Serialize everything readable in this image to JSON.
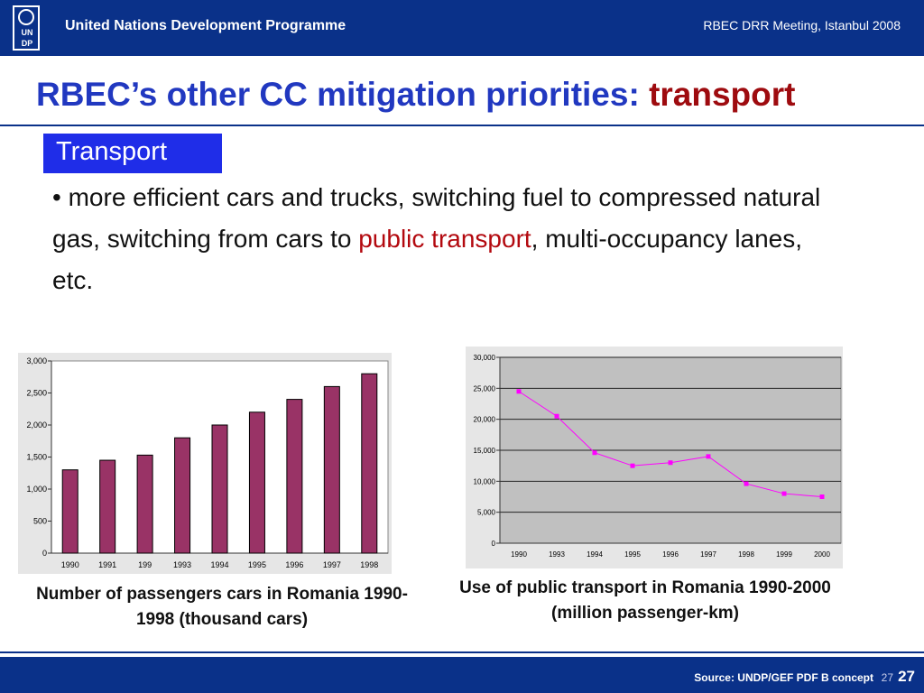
{
  "header": {
    "logo_letters": [
      "U",
      "N",
      "D",
      "P"
    ],
    "org_name": "United Nations Development Programme",
    "meeting": "RBEC DRR Meeting, Istanbul 2008"
  },
  "title": {
    "main": "RBEC’s other CC mitigation priorities: ",
    "accent": "transport"
  },
  "section_tag": "Transport",
  "bullet": {
    "symbol": "•",
    "part1": " more efficient cars and trucks, switching fuel to compressed natural gas, switching from cars to ",
    "highlight": "public transport",
    "part2": ", multi-occupancy lanes, etc."
  },
  "colors": {
    "brand_blue": "#0a3189",
    "title_blue": "#2138c0",
    "accent_red": "#9e0b0f",
    "bar_color": "#993366",
    "line_color": "#ff00ff"
  },
  "chart_data": [
    {
      "type": "bar",
      "categories": [
        "1990",
        "1991",
        "199",
        "1993",
        "1994",
        "1995",
        "1996",
        "1997",
        "1998"
      ],
      "values": [
        1300,
        1450,
        1530,
        1800,
        2000,
        2200,
        2400,
        2600,
        2800
      ],
      "ylim": [
        0,
        3000
      ],
      "yticks": [
        "0",
        "500",
        "1,000",
        "1,500",
        "2,000",
        "2,500",
        "3,000"
      ],
      "grid": false,
      "caption": "Number of passengers cars in Romania 1990-1998 (thousand cars)"
    },
    {
      "type": "line",
      "categories": [
        "1990",
        "1993",
        "1994",
        "1995",
        "1996",
        "1997",
        "1998",
        "1999",
        "2000"
      ],
      "values": [
        24500,
        20500,
        14600,
        12500,
        13000,
        14000,
        9600,
        8000,
        7500
      ],
      "ylim": [
        0,
        30000
      ],
      "yticks": [
        "0",
        "5,000",
        "10,000",
        "15,000",
        "20,000",
        "25,000",
        "30,000"
      ],
      "grid": true,
      "caption": "Use of public transport in Romania 1990-2000 (million passenger-km)"
    }
  ],
  "footer": {
    "source": "Source: UNDP/GEF PDF B concept",
    "page_small": "27",
    "page": "27"
  }
}
